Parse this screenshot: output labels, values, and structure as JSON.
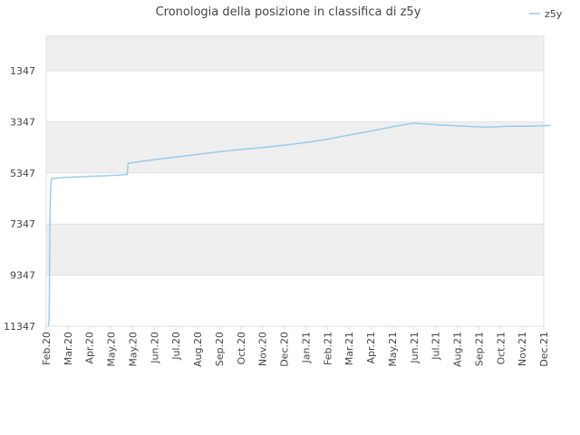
{
  "chart_data": {
    "type": "line",
    "title": "Cronologia della posizione in classifica di z5y",
    "xlabel": "",
    "ylabel": "",
    "y_inverted": true,
    "ylim": [
      11347,
      0
    ],
    "y_ticks": [
      1347,
      3347,
      5347,
      7347,
      9347,
      11347
    ],
    "x_ticks": [
      "Feb.20",
      "Mar.20",
      "Apr.20",
      "May.20",
      "May.20",
      "Jun.20",
      "Jul.20",
      "Aug.20",
      "Sep.20",
      "Oct.20",
      "Nov.20",
      "Dec.20",
      "Jan.21",
      "Feb.21",
      "Mar.21",
      "Apr.21",
      "May.21",
      "Jun.21",
      "Jul.21",
      "Aug.21",
      "Sep.21",
      "Oct.21",
      "Nov.21",
      "Dec.21"
    ],
    "grid": true,
    "legend_position": "top-right",
    "series": [
      {
        "name": "z5y",
        "color": "#99ccee",
        "x": [
          "2020-02-04",
          "2020-02-05",
          "2020-02-06",
          "2020-02-07",
          "2020-02-08",
          "2020-02-10",
          "2020-02-20",
          "2020-03-10",
          "2020-04-01",
          "2020-04-20",
          "2020-05-10",
          "2020-05-15",
          "2020-05-20",
          "2020-05-21",
          "2020-06-15",
          "2020-07-15",
          "2020-08-15",
          "2020-09-15",
          "2020-10-15",
          "2020-11-15",
          "2020-12-15",
          "2021-01-15",
          "2021-02-15",
          "2021-03-15",
          "2021-04-15",
          "2021-05-15",
          "2021-06-10",
          "2021-06-15",
          "2021-07-15",
          "2021-08-15",
          "2021-09-15",
          "2021-10-15",
          "2021-11-15",
          "2021-12-10"
        ],
        "y": [
          11347,
          10950,
          7200,
          5880,
          5600,
          5560,
          5530,
          5510,
          5480,
          5460,
          5430,
          5420,
          5400,
          4970,
          4870,
          4760,
          4650,
          4540,
          4440,
          4360,
          4270,
          4160,
          4020,
          3860,
          3700,
          3520,
          3400,
          3420,
          3470,
          3520,
          3560,
          3520,
          3520,
          3490
        ]
      }
    ]
  }
}
